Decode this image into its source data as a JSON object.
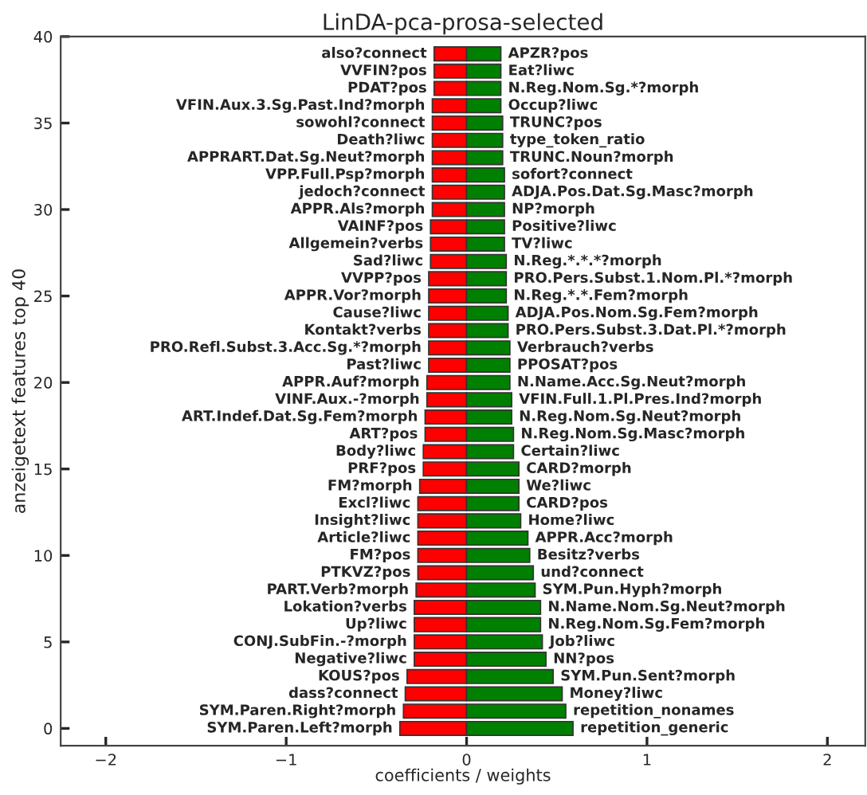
{
  "chart_data": {
    "type": "bar",
    "orientation": "horizontal",
    "title": "LinDA-pca-prosa-selected",
    "xlabel": "coefficients / weights",
    "ylabel": "anzeigetext features top 40",
    "x": [
      0,
      1,
      2,
      3,
      4,
      5,
      6,
      7,
      8,
      9,
      10,
      11,
      12,
      13,
      14,
      15,
      16,
      17,
      18,
      19,
      20,
      21,
      22,
      23,
      24,
      25,
      26,
      27,
      28,
      29,
      30,
      31,
      32,
      33,
      34,
      35,
      36,
      37,
      38,
      39
    ],
    "xlim": [
      -2.25,
      2.21
    ],
    "xticks": [
      {
        "value": -2,
        "label": "−2"
      },
      {
        "value": -1,
        "label": "−1"
      },
      0,
      1,
      2
    ],
    "ylim": [
      -1,
      40
    ],
    "yticks": [
      0,
      5,
      10,
      15,
      20,
      25,
      30,
      35,
      40
    ],
    "grid": false,
    "legend": false,
    "stacked": true,
    "series": [
      {
        "color": "#ff0000",
        "values": [
          -0.37,
          -0.35,
          -0.34,
          -0.33,
          -0.29,
          -0.29,
          -0.29,
          -0.29,
          -0.28,
          -0.27,
          -0.27,
          -0.27,
          -0.27,
          -0.27,
          -0.26,
          -0.24,
          -0.24,
          -0.23,
          -0.23,
          -0.22,
          -0.22,
          -0.21,
          -0.21,
          -0.21,
          -0.21,
          -0.21,
          -0.21,
          -0.2,
          -0.2,
          -0.2,
          -0.19,
          -0.19,
          -0.19,
          -0.19,
          -0.19,
          -0.19,
          -0.19,
          -0.18,
          -0.18,
          -0.18
        ],
        "value_labels": [
          "SYM.Paren.Left?morph",
          "SYM.Paren.Right?morph",
          "dass?connect",
          "KOUS?pos",
          "Negative?liwc",
          "CONJ.SubFin.-?morph",
          "Up?liwc",
          "Lokation?verbs",
          "PART.Verb?morph",
          "PTKVZ?pos",
          "FM?pos",
          "Article?liwc",
          "Insight?liwc",
          "Excl?liwc",
          "FM?morph",
          "PRF?pos",
          "Body?liwc",
          "ART?pos",
          "ART.Indef.Dat.Sg.Fem?morph",
          "VINF.Aux.-?morph",
          "APPR.Auf?morph",
          "Past?liwc",
          "PRO.Refl.Subst.3.Acc.Sg.*?morph",
          "Kontakt?verbs",
          "Cause?liwc",
          "APPR.Vor?morph",
          "VVPP?pos",
          "Sad?liwc",
          "Allgemein?verbs",
          "VAINF?pos",
          "APPR.Als?morph",
          "jedoch?connect",
          "VPP.Full.Psp?morph",
          "APPRART.Dat.Sg.Neut?morph",
          "Death?liwc",
          "sowohl?connect",
          "VFIN.Aux.3.Sg.Past.Ind?morph",
          "PDAT?pos",
          "VVFIN?pos",
          "also?connect"
        ]
      },
      {
        "color": "#008000",
        "values": [
          0.59,
          0.55,
          0.53,
          0.48,
          0.44,
          0.42,
          0.41,
          0.41,
          0.38,
          0.37,
          0.35,
          0.34,
          0.3,
          0.29,
          0.29,
          0.29,
          0.26,
          0.26,
          0.25,
          0.25,
          0.24,
          0.24,
          0.24,
          0.23,
          0.23,
          0.22,
          0.22,
          0.22,
          0.21,
          0.21,
          0.21,
          0.21,
          0.21,
          0.2,
          0.2,
          0.2,
          0.19,
          0.19,
          0.19,
          0.19
        ],
        "value_labels": [
          "repetition_generic",
          "repetition_nonames",
          "Money?liwc",
          "SYM.Pun.Sent?morph",
          "NN?pos",
          "Job?liwc",
          "N.Reg.Nom.Sg.Fem?morph",
          "N.Name.Nom.Sg.Neut?morph",
          "SYM.Pun.Hyph?morph",
          "und?connect",
          "Besitz?verbs",
          "APPR.Acc?morph",
          "Home?liwc",
          "CARD?pos",
          "We?liwc",
          "CARD?morph",
          "Certain?liwc",
          "N.Reg.Nom.Sg.Masc?morph",
          "N.Reg.Nom.Sg.Neut?morph",
          "VFIN.Full.1.Pl.Pres.Ind?morph",
          "N.Name.Acc.Sg.Neut?morph",
          "PPOSAT?pos",
          "Verbrauch?verbs",
          "PRO.Pers.Subst.3.Dat.Pl.*?morph",
          "ADJA.Pos.Nom.Sg.Fem?morph",
          "N.Reg.*.*.Fem?morph",
          "PRO.Pers.Subst.1.Nom.Pl.*?morph",
          "N.Reg.*.*.*?morph",
          "TV?liwc",
          "Positive?liwc",
          "NP?morph",
          "ADJA.Pos.Dat.Sg.Masc?morph",
          "sofort?connect",
          "TRUNC.Noun?morph",
          "type_token_ratio",
          "TRUNC?pos",
          "Occup?liwc",
          "N.Reg.Nom.Sg.*?morph",
          "Eat?liwc",
          "APZR?pos"
        ]
      }
    ]
  }
}
